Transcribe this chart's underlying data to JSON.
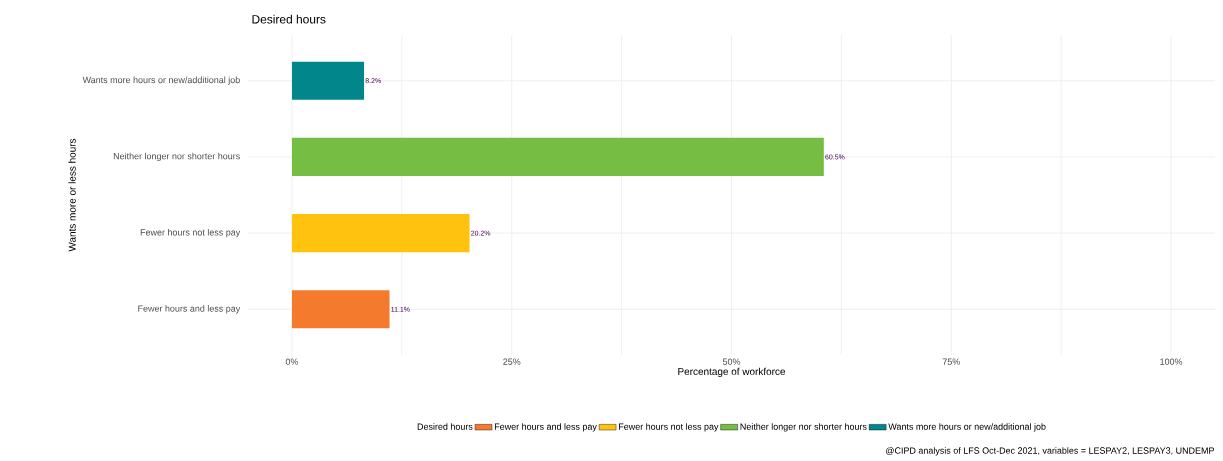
{
  "chart_data": {
    "type": "bar",
    "orientation": "horizontal",
    "title": "Desired hours",
    "xlabel": "Percentage of workforce",
    "ylabel": "Wants more or less hours",
    "legend_title": "Desired hours",
    "categories": [
      "Wants more hours or new/additional job",
      "Neither longer nor shorter hours",
      "Fewer hours not less pay",
      "Fewer hours and less pay"
    ],
    "series": [
      {
        "name": "Fewer hours and less pay",
        "color": "#f47b2d",
        "values": [
          null,
          null,
          null,
          11.1
        ],
        "value_labels": [
          null,
          null,
          null,
          "11.1%"
        ]
      },
      {
        "name": "Fewer hours not less pay",
        "color": "#ffc20e",
        "values": [
          null,
          null,
          20.2,
          null
        ],
        "value_labels": [
          null,
          null,
          "20.2%",
          null
        ]
      },
      {
        "name": "Neither longer nor shorter hours",
        "color": "#76bd43",
        "values": [
          null,
          60.5,
          null,
          null
        ],
        "value_labels": [
          null,
          "60.5%",
          null,
          null
        ]
      },
      {
        "name": "Wants more hours or new/additional job",
        "color": "#00868b",
        "values": [
          8.2,
          null,
          null,
          null
        ],
        "value_labels": [
          "8.2%",
          null,
          null,
          null
        ]
      }
    ],
    "xlim": [
      -5,
      105
    ],
    "xticks": [
      {
        "value": 0,
        "label": "0%"
      },
      {
        "value": 12.5,
        "label": null
      },
      {
        "value": 25,
        "label": "25%"
      },
      {
        "value": 37.5,
        "label": null
      },
      {
        "value": 50,
        "label": "50%"
      },
      {
        "value": 62.5,
        "label": null
      },
      {
        "value": 75,
        "label": "75%"
      },
      {
        "value": 87.5,
        "label": null
      },
      {
        "value": 100,
        "label": "100%"
      }
    ],
    "grid": true,
    "legend": "bottom",
    "annotations": [
      "@CIPD analysis of LFS Oct-Dec 2021, variables = LESPAY2, LESPAY3, UNDEMP"
    ]
  }
}
